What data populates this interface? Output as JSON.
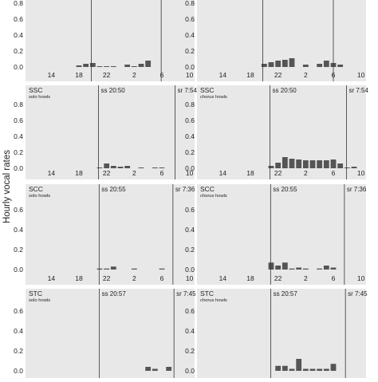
{
  "figure": {
    "ylabel": "Hourly vocal rates"
  },
  "colors": {
    "panel_bg": "#e8e8e8",
    "bar": "#555555",
    "line": "#333333"
  },
  "chart_data": [
    {
      "type": "bar",
      "label": "",
      "sublabel": "",
      "sunset": "",
      "sunrise": "",
      "yticks": [
        "0.0",
        "0.2",
        "0.4",
        "0.6",
        "0.8"
      ],
      "ylim": [
        0,
        0.8
      ],
      "xticks": [
        "14",
        "18",
        "22",
        "2",
        "6",
        "10"
      ],
      "categories": [
        "11",
        "12",
        "13",
        "14",
        "15",
        "16",
        "17",
        "18",
        "19",
        "20",
        "21",
        "22",
        "23",
        "0",
        "1",
        "2",
        "3",
        "4",
        "5",
        "6",
        "7",
        "8",
        "9",
        "10"
      ],
      "values": [
        0,
        0,
        0,
        0,
        0,
        0,
        0,
        0.02,
        0.04,
        0.05,
        0.01,
        0.01,
        0.01,
        0,
        0.03,
        0.01,
        0.04,
        0.08,
        0,
        0,
        0,
        0,
        0,
        0
      ],
      "sunset_x": 19.8,
      "sunrise_x": 29.9
    },
    {
      "type": "bar",
      "label": "",
      "sublabel": "",
      "sunset": "",
      "sunrise": "",
      "yticks": [
        "0.0",
        "0.2",
        "0.4",
        "0.6",
        "0.8"
      ],
      "ylim": [
        0,
        0.8
      ],
      "xticks": [
        "14",
        "18",
        "22",
        "2",
        "6",
        "10"
      ],
      "categories": [
        "11",
        "12",
        "13",
        "14",
        "15",
        "16",
        "17",
        "18",
        "19",
        "20",
        "21",
        "22",
        "23",
        "0",
        "1",
        "2",
        "3",
        "4",
        "5",
        "6",
        "7",
        "8",
        "9",
        "10"
      ],
      "values": [
        0,
        0,
        0,
        0,
        0,
        0,
        0,
        0,
        0,
        0.04,
        0.06,
        0.08,
        0.09,
        0.11,
        0,
        0.03,
        0,
        0.04,
        0.08,
        0.05,
        0.03,
        0,
        0,
        0
      ],
      "sunset_x": 19.8,
      "sunrise_x": 30.0
    },
    {
      "type": "bar",
      "label": "SSC",
      "sublabel": "solo howls",
      "sunset": "ss 20:50",
      "sunrise": "sr 7:54",
      "yticks": [
        "0.0",
        "0.2",
        "0.4",
        "0.6",
        "0.8"
      ],
      "ylim": [
        0,
        0.8
      ],
      "xticks": [
        "14",
        "18",
        "22",
        "2",
        "6",
        "10"
      ],
      "categories": [
        "11",
        "12",
        "13",
        "14",
        "15",
        "16",
        "17",
        "18",
        "19",
        "20",
        "21",
        "22",
        "23",
        "0",
        "1",
        "2",
        "3",
        "4",
        "5",
        "6",
        "7",
        "8",
        "9",
        "10"
      ],
      "values": [
        0,
        0,
        0,
        0,
        0,
        0,
        0,
        0,
        0,
        0,
        0.01,
        0.06,
        0.03,
        0.02,
        0.03,
        0,
        0.01,
        0,
        0.01,
        0.01,
        0,
        0,
        0,
        0
      ],
      "sunset_x": 20.83,
      "sunrise_x": 31.9
    },
    {
      "type": "bar",
      "label": "SSC",
      "sublabel": "chorus howls",
      "sunset": "ss 20:50",
      "sunrise": "sr 7:54",
      "yticks": [
        "0.0",
        "0.2",
        "0.4",
        "0.6",
        "0.8"
      ],
      "ylim": [
        0,
        0.8
      ],
      "xticks": [
        "14",
        "18",
        "22",
        "2",
        "6",
        "10"
      ],
      "categories": [
        "11",
        "12",
        "13",
        "14",
        "15",
        "16",
        "17",
        "18",
        "19",
        "20",
        "21",
        "22",
        "23",
        "0",
        "1",
        "2",
        "3",
        "4",
        "5",
        "6",
        "7",
        "8",
        "9",
        "10"
      ],
      "values": [
        0,
        0,
        0,
        0,
        0,
        0,
        0,
        0,
        0,
        0,
        0.03,
        0.07,
        0.14,
        0.12,
        0.11,
        0.1,
        0.1,
        0.1,
        0.1,
        0.11,
        0.06,
        0.01,
        0.02,
        0
      ],
      "sunset_x": 20.83,
      "sunrise_x": 31.9
    },
    {
      "type": "bar",
      "label": "SCC",
      "sublabel": "solo howls",
      "sunset": "ss 20:55",
      "sunrise": "sr 7:36",
      "yticks": [
        "0.0",
        "0.2",
        "0.4",
        "0.6"
      ],
      "ylim": [
        0,
        0.6
      ],
      "xticks": [
        "14",
        "18",
        "22",
        "2",
        "6",
        "10"
      ],
      "categories": [
        "11",
        "12",
        "13",
        "14",
        "15",
        "16",
        "17",
        "18",
        "19",
        "20",
        "21",
        "22",
        "23",
        "0",
        "1",
        "2",
        "3",
        "4",
        "5",
        "6",
        "7",
        "8",
        "9",
        "10"
      ],
      "values": [
        0,
        0,
        0,
        0,
        0,
        0,
        0,
        0,
        0,
        0,
        0.01,
        0.01,
        0.03,
        0,
        0,
        0.01,
        0,
        0,
        0,
        0.01,
        0,
        0,
        0,
        0
      ],
      "sunset_x": 20.92,
      "sunrise_x": 31.6
    },
    {
      "type": "bar",
      "label": "SCC",
      "sublabel": "chorus howls",
      "sunset": "ss 20:55",
      "sunrise": "sr 7:36",
      "yticks": [
        "0.0",
        "0.2",
        "0.4",
        "0.6"
      ],
      "ylim": [
        0,
        0.6
      ],
      "xticks": [
        "14",
        "18",
        "22",
        "2",
        "6",
        "10"
      ],
      "categories": [
        "11",
        "12",
        "13",
        "14",
        "15",
        "16",
        "17",
        "18",
        "19",
        "20",
        "21",
        "22",
        "23",
        "0",
        "1",
        "2",
        "3",
        "4",
        "5",
        "6",
        "7",
        "8",
        "9",
        "10"
      ],
      "values": [
        0,
        0,
        0,
        0,
        0,
        0,
        0,
        0,
        0,
        0,
        0.07,
        0.04,
        0.07,
        0.01,
        0.02,
        0.01,
        0,
        0.01,
        0.04,
        0.02,
        0,
        0,
        0,
        0
      ],
      "sunset_x": 20.92,
      "sunrise_x": 31.6
    },
    {
      "type": "bar",
      "label": "STC",
      "sublabel": "solo howls",
      "sunset": "ss 20:57",
      "sunrise": "sr 7:45",
      "yticks": [
        "0.0",
        "0.2",
        "0.4",
        "0.6"
      ],
      "ylim": [
        0,
        0.6
      ],
      "xticks": [
        "14",
        "18",
        "22",
        "2",
        "6",
        "10"
      ],
      "categories": [
        "11",
        "12",
        "13",
        "14",
        "15",
        "16",
        "17",
        "18",
        "19",
        "20",
        "21",
        "22",
        "23",
        "0",
        "1",
        "2",
        "3",
        "4",
        "5",
        "6",
        "7",
        "8",
        "9",
        "10"
      ],
      "values": [
        0,
        0,
        0,
        0,
        0,
        0,
        0,
        0,
        0,
        0,
        0,
        0,
        0,
        0,
        0,
        0,
        0,
        0.04,
        0.02,
        0,
        0.04,
        0,
        0,
        0
      ],
      "sunset_x": 20.95,
      "sunrise_x": 31.75
    },
    {
      "type": "bar",
      "label": "STC",
      "sublabel": "chorus howls",
      "sunset": "ss 20:57",
      "sunrise": "sr 7:45",
      "yticks": [
        "0.0",
        "0.2",
        "0.4",
        "0.6"
      ],
      "ylim": [
        0,
        0.6
      ],
      "xticks": [
        "14",
        "18",
        "22",
        "2",
        "6",
        "10"
      ],
      "categories": [
        "11",
        "12",
        "13",
        "14",
        "15",
        "16",
        "17",
        "18",
        "19",
        "20",
        "21",
        "22",
        "23",
        "0",
        "1",
        "2",
        "3",
        "4",
        "5",
        "6",
        "7",
        "8",
        "9",
        "10"
      ],
      "values": [
        0,
        0,
        0,
        0,
        0,
        0,
        0,
        0,
        0,
        0,
        0,
        0.05,
        0.05,
        0.02,
        0.12,
        0.02,
        0.02,
        0.02,
        0.02,
        0.07,
        0,
        0,
        0,
        0
      ],
      "sunset_x": 20.95,
      "sunrise_x": 31.75
    }
  ]
}
